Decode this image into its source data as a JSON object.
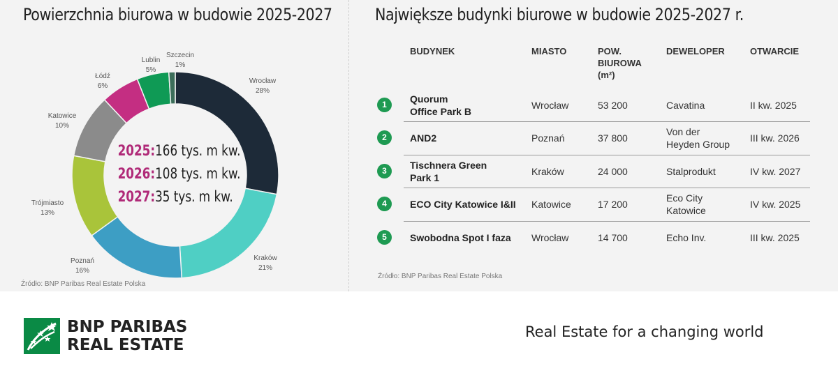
{
  "left": {
    "title": "Powierzchnia biurowa w budowie 2025-2027",
    "source": "Źródło: BNP Paribas Real Estate Polska",
    "stats": [
      {
        "year": "2025:",
        "value": "166 tys. m kw."
      },
      {
        "year": "2026:",
        "value": "108 tys. m kw."
      },
      {
        "year": "2027:",
        "value": "35 tys. m kw."
      }
    ]
  },
  "chart_data": {
    "type": "pie",
    "donut": true,
    "categories": [
      "Wrocław",
      "Kraków",
      "Poznań",
      "Trójmiasto",
      "Katowice",
      "Łódź",
      "Lublin",
      "Szczecin"
    ],
    "values": [
      28,
      21,
      16,
      13,
      10,
      6,
      5,
      1
    ],
    "value_labels": [
      "28%",
      "21%",
      "16%",
      "13%",
      "10%",
      "6%",
      "5%",
      "1%"
    ],
    "colors": [
      "#1d2a38",
      "#4fcfc4",
      "#3d9ec4",
      "#a9c43a",
      "#8b8b8b",
      "#c42e82",
      "#0f9a55",
      "#3c6e5a"
    ],
    "title": "Powierzchnia biurowa w budowie 2025-2027"
  },
  "right": {
    "title": "Największe budynki biurowe w budowie 2025-2027 r.",
    "source": "Źródło: BNP Paribas Real Estate Polska",
    "headers": {
      "building": "BUDYNEK",
      "city": "MIASTO",
      "area": [
        "POW.",
        "BIUROWA",
        "(m²)"
      ],
      "developer": "DEWELOPER",
      "opening": "OTWARCIE"
    },
    "rows": [
      {
        "n": "1",
        "building": [
          "Quorum",
          "Office Park B"
        ],
        "city": "Wrocław",
        "area": "53 200",
        "developer": [
          "Cavatina"
        ],
        "opening": "II kw. 2025"
      },
      {
        "n": "2",
        "building": [
          "AND2"
        ],
        "city": "Poznań",
        "area": "37 800",
        "developer": [
          "Von der",
          "Heyden Group"
        ],
        "opening": "III kw. 2026"
      },
      {
        "n": "3",
        "building": [
          "Tischnera Green",
          "Park 1"
        ],
        "city": "Kraków",
        "area": "24 000",
        "developer": [
          "Stalprodukt"
        ],
        "opening": "IV kw. 2027"
      },
      {
        "n": "4",
        "building": [
          "ECO City Katowice I&II"
        ],
        "city": "Katowice",
        "area": "17 200",
        "developer": [
          "Eco City",
          "Katowice"
        ],
        "opening": "IV kw. 2025"
      },
      {
        "n": "5",
        "building": [
          "Swobodna Spot I faza"
        ],
        "city": "Wrocław",
        "area": "14 700",
        "developer": [
          "Echo Inv."
        ],
        "opening": "III kw. 2025"
      }
    ]
  },
  "footer": {
    "brand_line1": "BNP PARIBAS",
    "brand_line2": "REAL ESTATE",
    "tagline": "Real Estate for a changing world",
    "brand_color": "#0a8a45"
  }
}
